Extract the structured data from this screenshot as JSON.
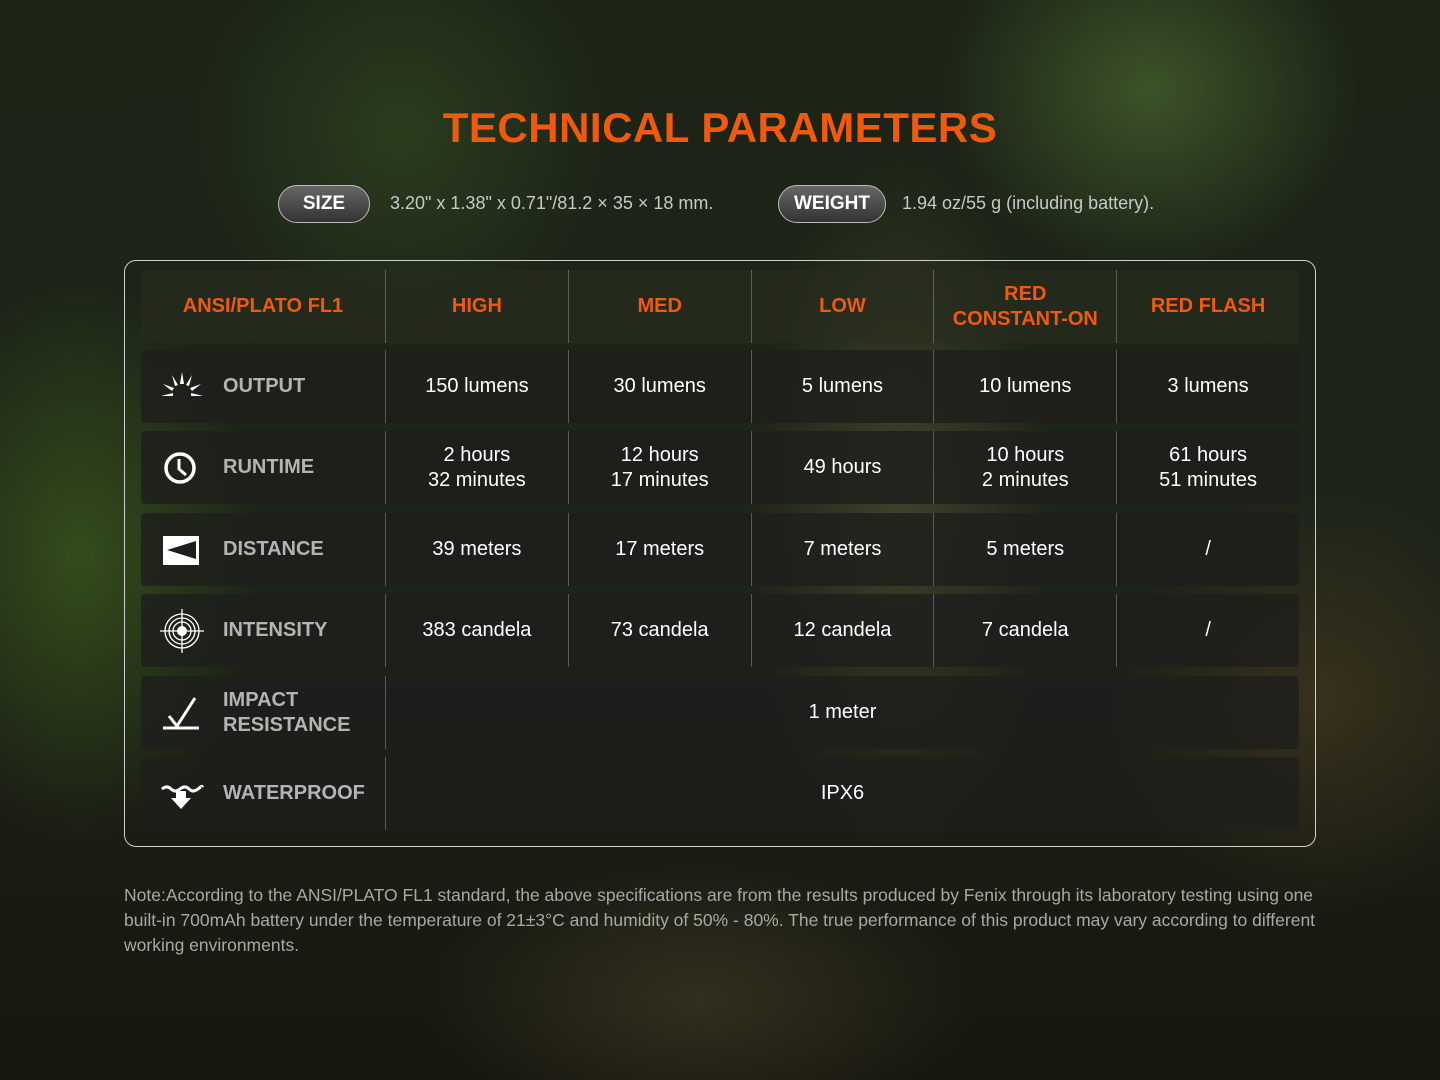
{
  "title": "TECHNICAL PARAMETERS",
  "size": {
    "label": "SIZE",
    "value": "3.20\" x 1.38\" x 0.71\"/81.2 × 35 × 18 mm."
  },
  "weight": {
    "label": "WEIGHT",
    "value": "1.94 oz/55 g (including battery)."
  },
  "table": {
    "headers": [
      "ANSI/PLATO FL1",
      "HIGH",
      "MED",
      "LOW",
      "RED\nCONSTANT-ON",
      "RED FLASH"
    ],
    "rows": [
      {
        "icon": "sun-burst-icon",
        "label": "OUTPUT",
        "values": [
          "150 lumens",
          "30 lumens",
          "5 lumens",
          "10 lumens",
          "3 lumens"
        ]
      },
      {
        "icon": "clock-icon",
        "label": "RUNTIME",
        "values": [
          "2 hours\n32 minutes",
          "12 hours\n17 minutes",
          "49 hours",
          "10 hours\n2 minutes",
          "61 hours\n51 minutes"
        ]
      },
      {
        "icon": "beam-distance-icon",
        "label": "DISTANCE",
        "values": [
          "39 meters",
          "17 meters",
          "7 meters",
          "5 meters",
          "/"
        ]
      },
      {
        "icon": "target-icon",
        "label": "INTENSITY",
        "values": [
          "383 candela",
          "73 candela",
          "12 candela",
          "7 candela",
          "/"
        ]
      },
      {
        "icon": "impact-icon",
        "label": "IMPACT\nRESISTANCE",
        "value": "1 meter"
      },
      {
        "icon": "water-drop-icon",
        "label": "WATERPROOF",
        "value": "IPX6"
      }
    ]
  },
  "note": "Note:According to the ANSI/PLATO FL1 standard, the above specifications are from the results produced by Fenix through its laboratory testing using one built-in 700mAh battery under the temperature of 21±3°C and humidity of 50% - 80%. The true performance of this product may vary according to different working environments.",
  "colors": {
    "accent": "#f05a0a"
  }
}
